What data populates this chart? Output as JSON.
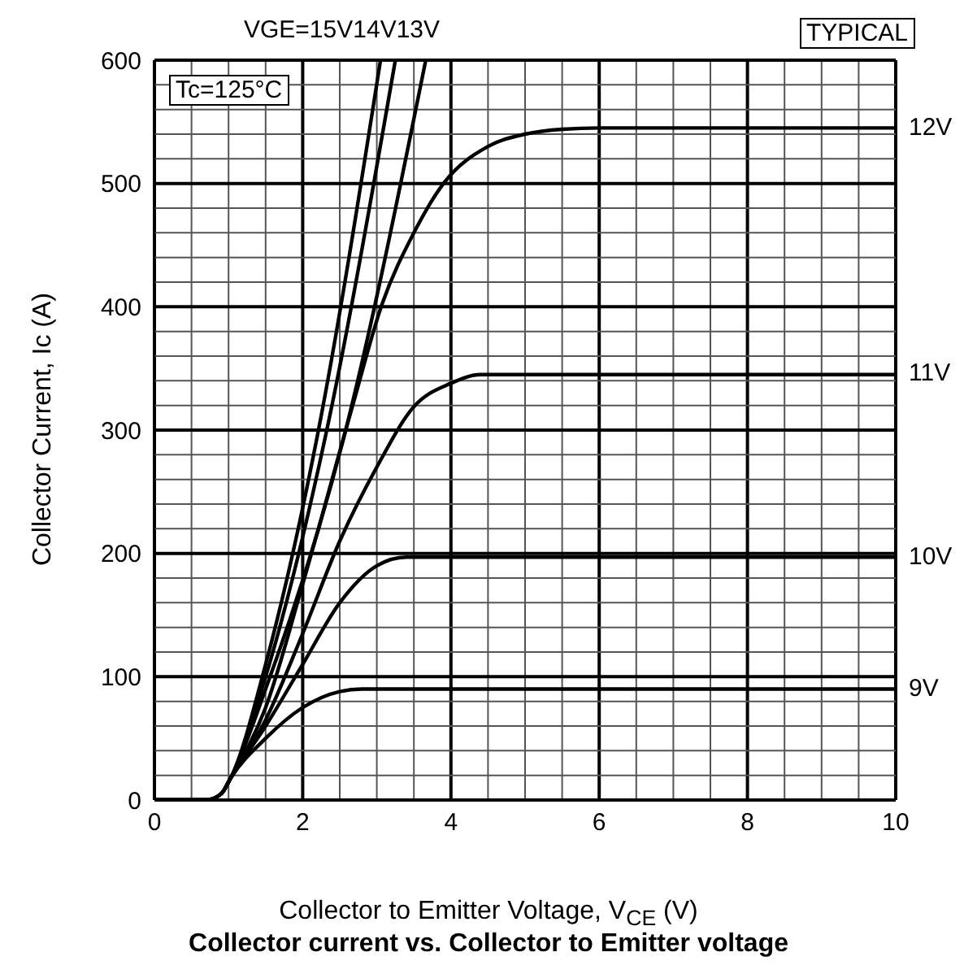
{
  "chart_data": {
    "type": "line",
    "title": "Collector current vs. Collector to Emitter voltage",
    "xlabel": "Collector to Emitter Voltage, V$_{CE}$ (V)",
    "ylabel": "Collector Current, Ic (A)",
    "annotations": [
      "TYPICAL",
      "Tc=125°C"
    ],
    "xlim": [
      0,
      10
    ],
    "ylim": [
      0,
      600
    ],
    "xticks": [
      0,
      {
        "value": 0.5,
        "label": null
      },
      {
        "value": 1,
        "label": null
      },
      {
        "value": 1.5,
        "label": null
      },
      2,
      {
        "value": 2.5,
        "label": null
      },
      {
        "value": 3,
        "label": null
      },
      {
        "value": 3.5,
        "label": null
      },
      4,
      {
        "value": 4.5,
        "label": null
      },
      {
        "value": 5,
        "label": null
      },
      {
        "value": 5.5,
        "label": null
      },
      6,
      {
        "value": 6.5,
        "label": null
      },
      {
        "value": 7,
        "label": null
      },
      {
        "value": 7.5,
        "label": null
      },
      8,
      {
        "value": 8.5,
        "label": null
      },
      {
        "value": 9,
        "label": null
      },
      {
        "value": 9.5,
        "label": null
      },
      10
    ],
    "yticks": [
      0,
      {
        "value": 20,
        "label": null
      },
      {
        "value": 40,
        "label": null
      },
      {
        "value": 60,
        "label": null
      },
      {
        "value": 80,
        "label": null
      },
      100,
      {
        "value": 120,
        "label": null
      },
      {
        "value": 140,
        "label": null
      },
      {
        "value": 160,
        "label": null
      },
      {
        "value": 180,
        "label": null
      },
      200,
      {
        "value": 220,
        "label": null
      },
      {
        "value": 240,
        "label": null
      },
      {
        "value": 260,
        "label": null
      },
      {
        "value": 280,
        "label": null
      },
      300,
      {
        "value": 320,
        "label": null
      },
      {
        "value": 340,
        "label": null
      },
      {
        "value": 360,
        "label": null
      },
      {
        "value": 380,
        "label": null
      },
      400,
      {
        "value": 420,
        "label": null
      },
      {
        "value": 440,
        "label": null
      },
      {
        "value": 460,
        "label": null
      },
      {
        "value": 480,
        "label": null
      },
      500,
      {
        "value": 520,
        "label": null
      },
      {
        "value": 540,
        "label": null
      },
      {
        "value": 560,
        "label": null
      },
      {
        "value": 580,
        "label": null
      },
      600
    ],
    "grid": true,
    "legend": false,
    "marker": "none",
    "line_style": "solid",
    "series": [
      {
        "name": "VGE=15V",
        "color": "#000000",
        "x": [
          0,
          0.7,
          0.9,
          1.03,
          1.5,
          2.19,
          3.05
        ],
        "values": [
          0,
          0,
          5,
          18,
          110,
          293,
          600
        ]
      },
      {
        "name": "14V",
        "color": "#000000",
        "x": [
          0,
          0.7,
          0.9,
          1.03,
          1.5,
          2.3,
          3.25
        ],
        "values": [
          0,
          0,
          5,
          18,
          100,
          293,
          600
        ]
      },
      {
        "name": "13V",
        "color": "#000000",
        "x": [
          0,
          0.7,
          0.9,
          1.03,
          1.5,
          2.55,
          3.66
        ],
        "values": [
          0,
          0,
          5,
          18,
          90,
          293,
          600
        ]
      },
      {
        "name": "12V",
        "color": "#000000",
        "x": [
          0,
          0.7,
          0.9,
          1.03,
          1.5,
          2,
          2.67,
          3.07,
          3.5,
          3.9,
          4.5,
          5,
          5.5,
          6,
          10
        ],
        "values": [
          0,
          0,
          5,
          18,
          75,
          175,
          319,
          402,
          460,
          500,
          530,
          540,
          544,
          545,
          545
        ]
      },
      {
        "name": "11V",
        "color": "#000000",
        "x": [
          0,
          0.7,
          0.9,
          1.03,
          1.5,
          2,
          2.5,
          3,
          3.5,
          4,
          4.4,
          10
        ],
        "values": [
          0,
          0,
          5,
          18,
          65,
          135,
          210,
          270,
          319,
          338,
          345,
          345
        ]
      },
      {
        "name": "10V",
        "color": "#000000",
        "x": [
          0,
          0.7,
          0.9,
          1.03,
          1.5,
          2,
          2.5,
          3,
          3.4,
          10
        ],
        "values": [
          0,
          0,
          5,
          18,
          60,
          110,
          160,
          190,
          197,
          197
        ]
      },
      {
        "name": "9V",
        "color": "#000000",
        "x": [
          0,
          0.7,
          0.9,
          1.03,
          1.5,
          2,
          2.5,
          2.8,
          10
        ],
        "values": [
          0,
          0,
          5,
          18,
          50,
          75,
          88,
          90,
          90
        ]
      }
    ]
  }
}
